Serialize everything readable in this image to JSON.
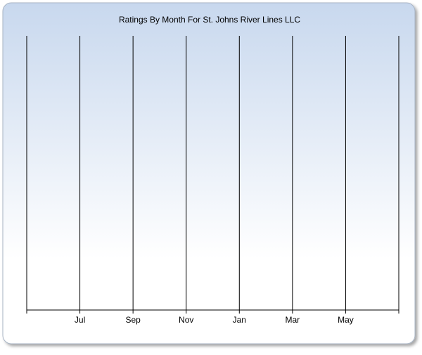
{
  "chart_data": {
    "type": "line",
    "title": "Ratings By Month For St. Johns River Lines LLC",
    "x": [
      null,
      "Jul",
      "Sep",
      "Nov",
      "Jan",
      "Mar",
      "May",
      null
    ],
    "grid": true,
    "color": "#000000"
  }
}
